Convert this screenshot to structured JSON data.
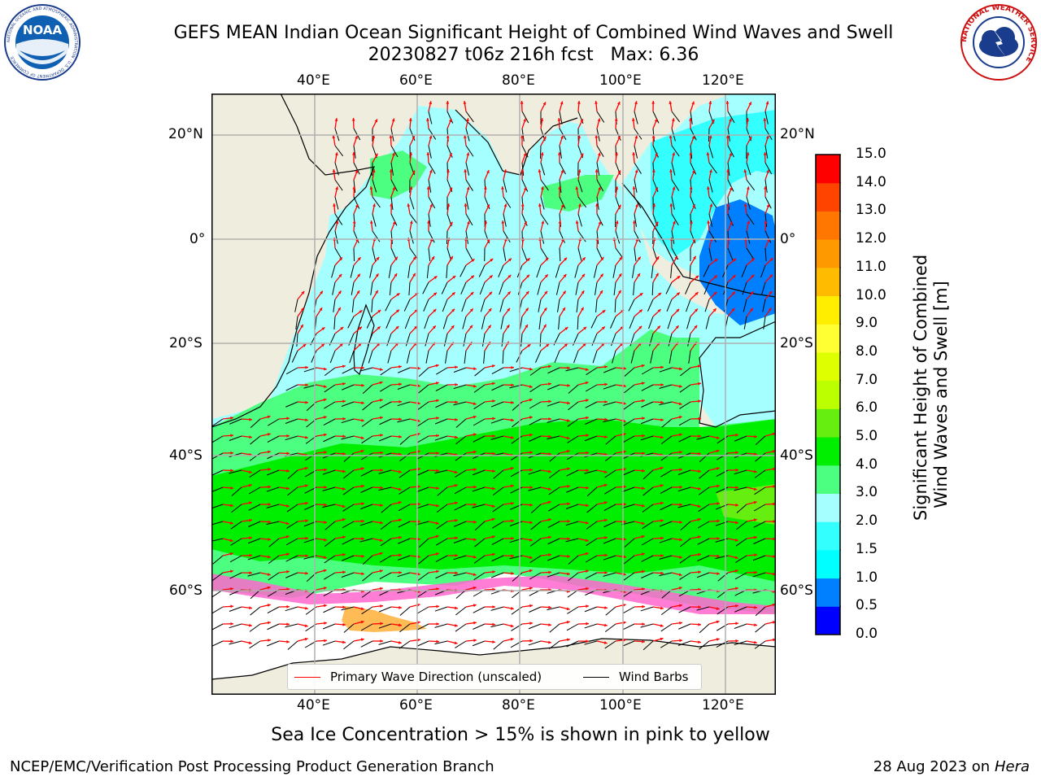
{
  "title_line1": "GEFS MEAN Indian Ocean Significant Height of Combined Wind Waves and Swell",
  "title_line2": "20230827 t06z 216h fcst   Max: 6.36",
  "map": {
    "lon_ticks": [
      "40°E",
      "60°E",
      "80°E",
      "100°E",
      "120°E"
    ],
    "lat_ticks": [
      "20°N",
      "0°",
      "20°S",
      "40°S",
      "60°S"
    ],
    "colors": {
      "land": "#efedde",
      "ocean_low": "#a6ffff",
      "ocean_mid": "#4dff80",
      "ocean_high": "#19ee19",
      "ice": "#ff66cc",
      "wave_arrow": "#ff0000",
      "wind_barb": "#000000",
      "grid": "#b0b0b0"
    }
  },
  "legend": {
    "wave_label": "Primary Wave Direction (unscaled)",
    "wind_label": "Wind Barbs",
    "wave_color": "#ff0000",
    "wind_color": "#000000"
  },
  "colorbar": {
    "label_line1": "Significant Height of Combined",
    "label_line2": "Wind Waves and Swell [m]",
    "ticks": [
      "0.0",
      "0.5",
      "1.0",
      "1.5",
      "2.0",
      "3.0",
      "4.0",
      "5.0",
      "6.0",
      "7.0",
      "8.0",
      "9.0",
      "10.0",
      "11.0",
      "12.0",
      "13.0",
      "14.0",
      "15.0"
    ],
    "colors": [
      "#0000ff",
      "#0080ff",
      "#00ffff",
      "#33ffff",
      "#a6ffff",
      "#4dff80",
      "#00ee00",
      "#66ee11",
      "#bbff00",
      "#ddff00",
      "#ffff33",
      "#ffee00",
      "#ffbb00",
      "#ff9900",
      "#ff7700",
      "#ff4400",
      "#ff0000"
    ]
  },
  "bottom_caption": "Sea Ice Concentration > 15% is shown in pink to yellow",
  "footer_left": "NCEP/EMC/Verification Post Processing Product Generation Branch",
  "footer_right_date": "28 Aug 2023 on",
  "footer_right_host": "Hera",
  "logo_left": "NOAA",
  "logo_left_ring": "NATIONAL OCEANIC AND ATMOSPHERIC ADMINISTRATION · U.S. DEPARTMENT OF COMMERCE",
  "logo_right_ring": "NATIONAL WEATHER SERVICE"
}
